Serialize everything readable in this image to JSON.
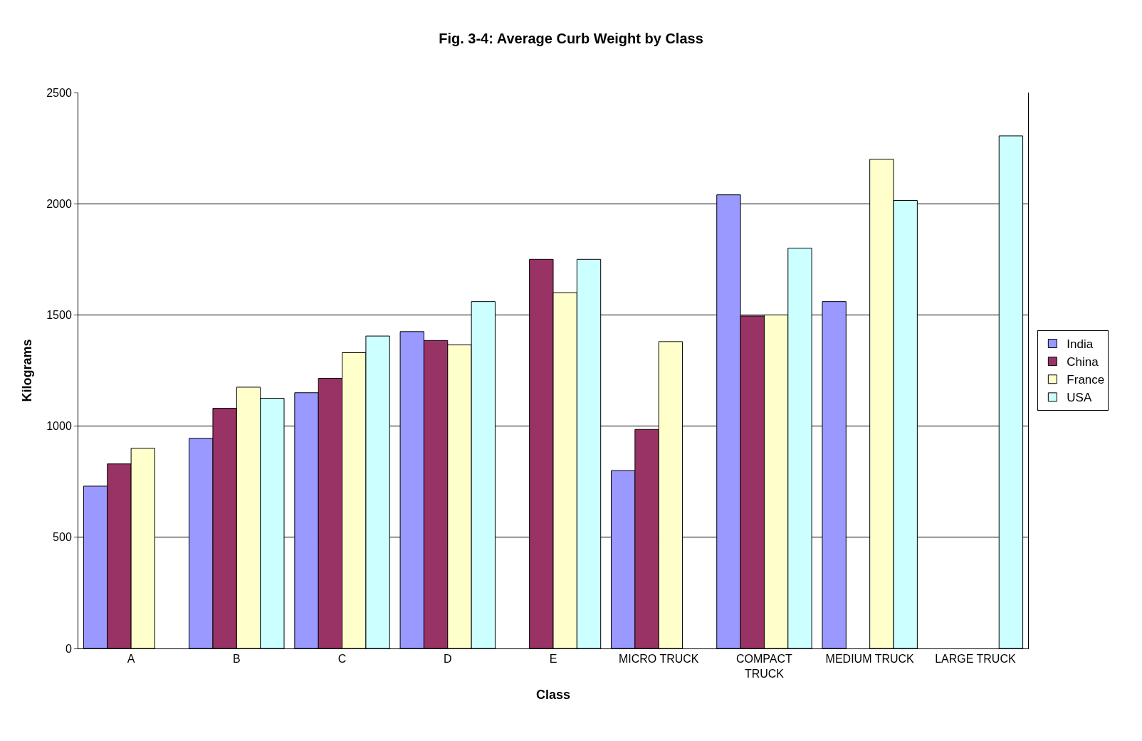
{
  "chart_data": {
    "type": "bar",
    "title": "Fig. 3-4: Average Curb Weight by Class",
    "xlabel": "Class",
    "ylabel": "Kilograms",
    "categories": [
      "A",
      "B",
      "C",
      "D",
      "E",
      "MICRO TRUCK",
      "COMPACT TRUCK",
      "MEDIUM TRUCK",
      "LARGE TRUCK"
    ],
    "series": [
      {
        "name": "India",
        "color": "#9999ff",
        "values": [
          730,
          945,
          1150,
          1425,
          null,
          800,
          2040,
          1560,
          null
        ]
      },
      {
        "name": "China",
        "color": "#993366",
        "values": [
          830,
          1080,
          1215,
          1385,
          1750,
          985,
          1495,
          null,
          null
        ]
      },
      {
        "name": "France",
        "color": "#ffffcc",
        "values": [
          900,
          1175,
          1330,
          1365,
          1600,
          1380,
          1500,
          2200,
          null
        ]
      },
      {
        "name": "USA",
        "color": "#ccffff",
        "values": [
          null,
          1125,
          1405,
          1560,
          1750,
          null,
          1800,
          2015,
          2305
        ]
      }
    ],
    "ylim": [
      0,
      2500
    ],
    "yticks": [
      0,
      500,
      1000,
      1500,
      2000,
      2500
    ],
    "grid": "y",
    "legend": "right"
  }
}
